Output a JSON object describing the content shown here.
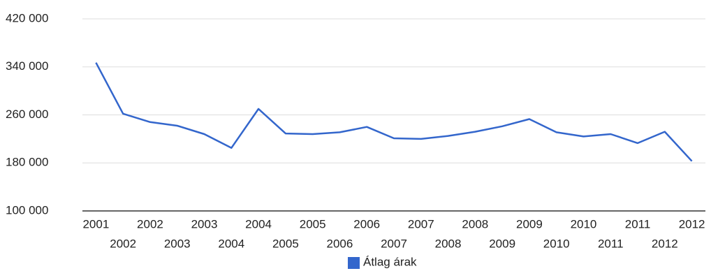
{
  "chart_data": {
    "type": "line",
    "categories": [
      "2001",
      "2002",
      "2002",
      "2003",
      "2003",
      "2004",
      "2004",
      "2005",
      "2005",
      "2006",
      "2006",
      "2007",
      "2007",
      "2008",
      "2008",
      "2009",
      "2009",
      "2010",
      "2010",
      "2011",
      "2011",
      "2012",
      "2012"
    ],
    "series": [
      {
        "name": "Átlag árak",
        "color": "#3366cc",
        "values": [
          347000,
          262000,
          248000,
          242000,
          228000,
          205000,
          270000,
          229000,
          228000,
          231000,
          240000,
          221000,
          220000,
          225000,
          232000,
          241000,
          253000,
          231000,
          224000,
          228000,
          213000,
          232000,
          183000
        ]
      }
    ],
    "ylim": [
      100000,
      420000
    ],
    "yticks": [
      {
        "value": 100000,
        "label": "100 000"
      },
      {
        "value": 180000,
        "label": "180 000"
      },
      {
        "value": 260000,
        "label": "260 000"
      },
      {
        "value": 340000,
        "label": "340 000"
      },
      {
        "value": 420000,
        "label": "420 000"
      }
    ],
    "grid": true,
    "legend": "bottom"
  }
}
